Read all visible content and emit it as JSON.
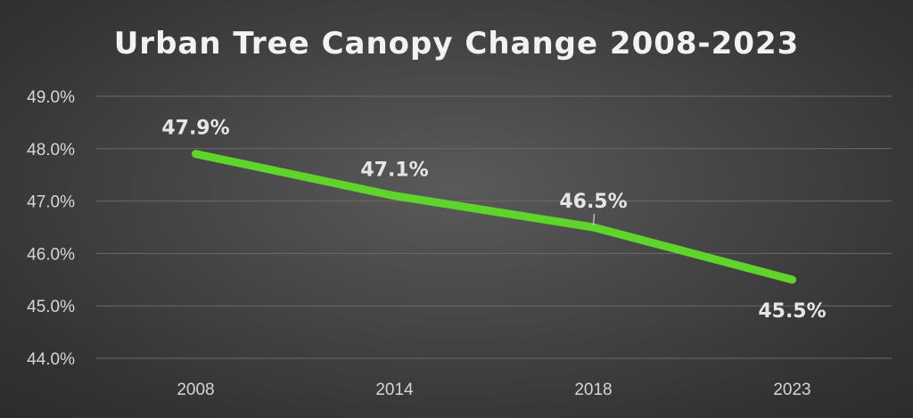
{
  "chart_data": {
    "type": "line",
    "title": "Urban Tree Canopy Change 2008-2023",
    "xlabel": "",
    "ylabel": "",
    "categories": [
      "2008",
      "2014",
      "2018",
      "2023"
    ],
    "series": [
      {
        "values": [
          47.9,
          47.1,
          46.5,
          45.5
        ],
        "data_labels": [
          "47.9%",
          "47.1%",
          "46.5%",
          "45.5%"
        ]
      }
    ],
    "ylim": [
      44.0,
      49.0
    ],
    "yticks": [
      44.0,
      45.0,
      46.0,
      47.0,
      48.0,
      49.0
    ],
    "ytick_labels": [
      "44.0%",
      "45.0%",
      "46.0%",
      "47.0%",
      "48.0%",
      "49.0%"
    ],
    "grid": true,
    "legend": "none",
    "colors": {
      "line": "#5fd42a",
      "gridline": "#6a6a6a",
      "text": "#e6e6e6"
    }
  }
}
